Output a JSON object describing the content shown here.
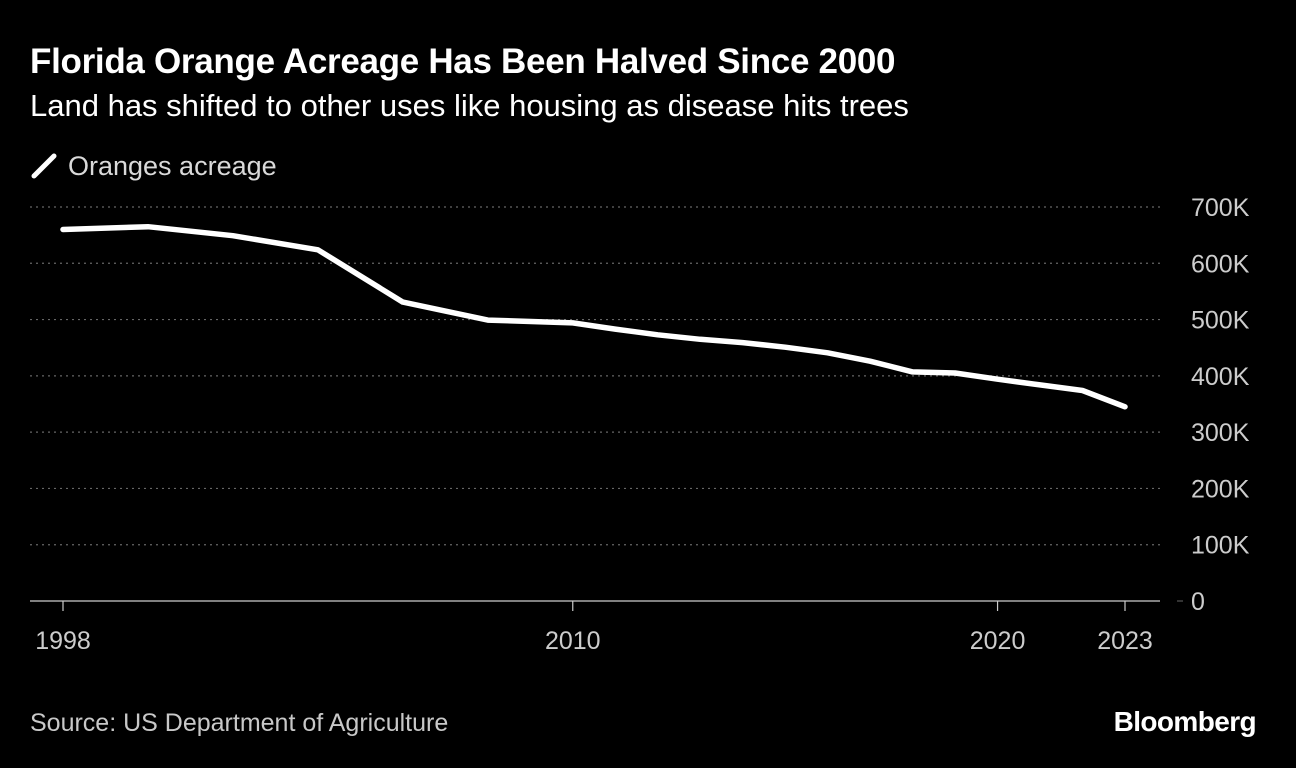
{
  "header": {
    "title": "Florida Orange Acreage Has Been Halved Since 2000",
    "subtitle": "Land has shifted to other uses like housing as disease hits trees"
  },
  "legend": {
    "label": "Oranges acreage"
  },
  "footer": {
    "source": "Source: US Department of Agriculture",
    "brand": "Bloomberg"
  },
  "colors": {
    "background": "#000000",
    "series": "#ffffff",
    "grid": "#666666",
    "axis": "#cccccc",
    "text": "#ffffff"
  },
  "chart_data": {
    "type": "line",
    "title": "Florida Orange Acreage Has Been Halved Since 2000",
    "subtitle": "Land has shifted to other uses like housing as disease hits trees",
    "xlabel": "",
    "ylabel": "",
    "xlim": [
      1998,
      2023
    ],
    "ylim": [
      0,
      700000
    ],
    "x_ticks": [
      1998,
      2010,
      2020,
      2023
    ],
    "x_tick_labels": [
      "1998",
      "2010",
      "2020",
      "2023"
    ],
    "y_ticks": [
      0,
      100000,
      200000,
      300000,
      400000,
      500000,
      600000,
      700000
    ],
    "y_tick_labels": [
      "0",
      "100K",
      "200K",
      "300K",
      "400K",
      "500K",
      "600K",
      "700K"
    ],
    "y_axis_side": "right",
    "grid": "horizontal dotted",
    "legend_position": "top-left",
    "series": [
      {
        "name": "Oranges acreage",
        "x": [
          1998,
          2000,
          2002,
          2004,
          2006,
          2008,
          2010,
          2011,
          2012,
          2013,
          2014,
          2015,
          2016,
          2017,
          2018,
          2019,
          2020,
          2021,
          2022,
          2023
        ],
        "values": [
          660000,
          665000,
          649000,
          624000,
          531000,
          499000,
          494000,
          483000,
          473000,
          465000,
          459000,
          451000,
          441000,
          426000,
          407000,
          405000,
          394000,
          384000,
          374000,
          345000
        ]
      }
    ]
  }
}
